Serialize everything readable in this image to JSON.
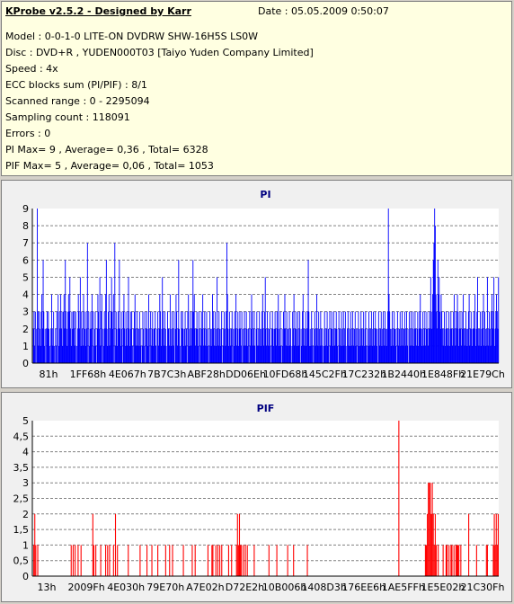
{
  "header": {
    "title": "KProbe v2.5.2 - Designed by Karr",
    "date": "Date : 05.05.2009 0:50:07"
  },
  "info_lines": [
    "Model : 0-0-1-0 LITE-ON DVDRW SHW-16H5S  LS0W",
    "Disc : DVD+R , YUDEN000T03 [Taiyo Yuden Company Limited]",
    "Speed : 4x",
    "ECC blocks sum (PI/PIF) : 8/1",
    "Scanned range : 0 - 2295094",
    "Sampling count : 118091",
    "Errors : 0",
    "PI Max= 9 , Average= 0,36 , Total= 6328",
    "PIF Max= 5 , Average= 0,06 , Total= 1053"
  ],
  "colors": {
    "pi": "#0000ff",
    "pif": "#ff0000",
    "title": "#000080",
    "grid": "#808080",
    "panel": "#f0f0f0",
    "info_bg": "#ffffe1"
  },
  "chart_data": [
    {
      "type": "bar",
      "title": "PI",
      "ylim": [
        0,
        9
      ],
      "yticks": [
        "0",
        "1",
        "2",
        "3",
        "4",
        "5",
        "6",
        "7",
        "8",
        "9"
      ],
      "xticks": [
        "81h",
        "1FF68h",
        "4E067h",
        "7B7C3h",
        "ABF28h",
        "DD06Eh",
        "10FD68h",
        "145C2Fh",
        "17C232h",
        "1B2440h",
        "1E848Fh",
        "21E79Ch"
      ],
      "grid": true,
      "series": [
        {
          "values": [
            0,
            2,
            3,
            1,
            3,
            0,
            2,
            9,
            3,
            1,
            3,
            2,
            1,
            3,
            4,
            2,
            6,
            3,
            1,
            2,
            0,
            2,
            3,
            2,
            3,
            2,
            1,
            0,
            2,
            4,
            2,
            1,
            3,
            1,
            0,
            2,
            1,
            3,
            0,
            4,
            1,
            3,
            2,
            4,
            2,
            3,
            1,
            3,
            4,
            2,
            6,
            3,
            2,
            1,
            3,
            4,
            3,
            5,
            2,
            1,
            3,
            2,
            3,
            2,
            3,
            1,
            3,
            0,
            1,
            2,
            4,
            3,
            2,
            5,
            1,
            3,
            2,
            1,
            4,
            3,
            2,
            1,
            3,
            2,
            7,
            0,
            3,
            1,
            2,
            3,
            2,
            4,
            0,
            3,
            1,
            2,
            3,
            1,
            0,
            2,
            4,
            3,
            2,
            5,
            1,
            3,
            4,
            0,
            2,
            1,
            3,
            2,
            4,
            6,
            2,
            1,
            3,
            4,
            1,
            2,
            3,
            5,
            3,
            2,
            4,
            0,
            7,
            1,
            3,
            2,
            1,
            3,
            2,
            6,
            2,
            1,
            3,
            2,
            0,
            3,
            4,
            2,
            1,
            3,
            2,
            1,
            3,
            5,
            2,
            1,
            3,
            2,
            3,
            1,
            0,
            2,
            3,
            4,
            2,
            1,
            3,
            2,
            1,
            2,
            3,
            1,
            2,
            0,
            1,
            3,
            2,
            1,
            3,
            0,
            2,
            3,
            2,
            1,
            4,
            2,
            0,
            3,
            1,
            2,
            3,
            1,
            2,
            2,
            3,
            1,
            0,
            2,
            3,
            1,
            2,
            4,
            3,
            1,
            2,
            5,
            3,
            2,
            1,
            3,
            2,
            1,
            0,
            3,
            2,
            2,
            1,
            4,
            2,
            1,
            3,
            2,
            1,
            3,
            0,
            2,
            4,
            3,
            1,
            2,
            6,
            2,
            1,
            0,
            3,
            2,
            3,
            2,
            1,
            2,
            3,
            1,
            2,
            0,
            3,
            4,
            1,
            2,
            3,
            1,
            2,
            3,
            6,
            3,
            4,
            2,
            1,
            2,
            3,
            2,
            1,
            3,
            0,
            2,
            1,
            3,
            2,
            4,
            1,
            2,
            3,
            1,
            2,
            3,
            1,
            2,
            0,
            1,
            3,
            2,
            1,
            2,
            4,
            3,
            2,
            1,
            3,
            1,
            2,
            5,
            2,
            1,
            3,
            2,
            1,
            2,
            3,
            0,
            1,
            2,
            3,
            2,
            1,
            3,
            7,
            4,
            2,
            1,
            3,
            2,
            1,
            2,
            3,
            0,
            2,
            1,
            3,
            2,
            4,
            1,
            2,
            3,
            1,
            2,
            3,
            2,
            1,
            3,
            0,
            2,
            1,
            3,
            2,
            1,
            3,
            2,
            1,
            2,
            0,
            3,
            1,
            2,
            4,
            3,
            1,
            2,
            3,
            1,
            0,
            2,
            3,
            1,
            2,
            1,
            3,
            2,
            1,
            2,
            3,
            4,
            2,
            1,
            3,
            5,
            2,
            1,
            3,
            2,
            1,
            2,
            3,
            1,
            0,
            2,
            3,
            2,
            1,
            2,
            3,
            2,
            1,
            3,
            2,
            4,
            1,
            2,
            3,
            1,
            0,
            2,
            1,
            3,
            2,
            4,
            2,
            1,
            3,
            2,
            1,
            2,
            3,
            1,
            2,
            0,
            1,
            3,
            2,
            4,
            1,
            2,
            3,
            2,
            1,
            3,
            1,
            2,
            3,
            0,
            2,
            1,
            3,
            4,
            2,
            1,
            2,
            3,
            1,
            2,
            3,
            6,
            3,
            1,
            2,
            1,
            3,
            2,
            1,
            0,
            2,
            3,
            1,
            2,
            4,
            2,
            1,
            3,
            2,
            1,
            3,
            2,
            1,
            2,
            0,
            1,
            3,
            2,
            1,
            2,
            3,
            1,
            2,
            0,
            3,
            1,
            2,
            3,
            2,
            1,
            3,
            2,
            1,
            2,
            3,
            2,
            1,
            0,
            3,
            2,
            1,
            2,
            3,
            1,
            2,
            3,
            1,
            2,
            3,
            1,
            0,
            2,
            3,
            1,
            2,
            1,
            3,
            2,
            1,
            3,
            2,
            1,
            2,
            3,
            1,
            2,
            0,
            2,
            3,
            1,
            2,
            1,
            3,
            2,
            1,
            2,
            3,
            1,
            2,
            3,
            1,
            0,
            2,
            1,
            3,
            2,
            1,
            2,
            3,
            1,
            2,
            3,
            1,
            2,
            3,
            2,
            1,
            2,
            0,
            3,
            2,
            1,
            2,
            3,
            1,
            2,
            3,
            2,
            1,
            3,
            2,
            1,
            2,
            3,
            9,
            4,
            3,
            2,
            1,
            2,
            3,
            1,
            2,
            3,
            2,
            1,
            2,
            0,
            3,
            2,
            1,
            2,
            3,
            1,
            2,
            3,
            1,
            2,
            2,
            3,
            1,
            2,
            3,
            1,
            2,
            0,
            3,
            1,
            2,
            3,
            1,
            2,
            3,
            1,
            2,
            3,
            2,
            1,
            2,
            3,
            1,
            2,
            3,
            4,
            2,
            1,
            2,
            3,
            1,
            2,
            3,
            1,
            2,
            3,
            2,
            1,
            2,
            3,
            2,
            5,
            3,
            2,
            4,
            6,
            7,
            9,
            8,
            4,
            3,
            2,
            6,
            4,
            5,
            3,
            2,
            4,
            3,
            2,
            1,
            2,
            3,
            1,
            2,
            3,
            2,
            1,
            2,
            3,
            1,
            2,
            3,
            2,
            1,
            2,
            3,
            4,
            2,
            1,
            3,
            2,
            4,
            3,
            1,
            2,
            3,
            2,
            1,
            3,
            2,
            4,
            2,
            1,
            2,
            3,
            2,
            1,
            2,
            3,
            4,
            1,
            2,
            3,
            2,
            1,
            2,
            3,
            2,
            4,
            1,
            2,
            3,
            5,
            2,
            1,
            2,
            3,
            1,
            2,
            3,
            2,
            4,
            1,
            3,
            2,
            1,
            2,
            5,
            1,
            2,
            3,
            2,
            1,
            3,
            4,
            2,
            3,
            5,
            1,
            2,
            3,
            4,
            3,
            2,
            5
          ]
        }
      ]
    },
    {
      "type": "bar",
      "title": "PIF",
      "ylim": [
        0,
        5
      ],
      "yticks": [
        "0",
        "0,5",
        "1",
        "1,5",
        "2",
        "2,5",
        "3",
        "3,5",
        "4",
        "4,5",
        "5"
      ],
      "xticks": [
        "13h",
        "2009Fh",
        "4E030h",
        "79E70h",
        "A7E02h",
        "D72E2h",
        "10B006h",
        "1408D3h",
        "176EE6h",
        "1AE5FFh",
        "1E5E02h",
        "21C30Fh"
      ],
      "grid": true,
      "series": [
        {
          "values": [
            0,
            1,
            2,
            1,
            0,
            1,
            0,
            0,
            0,
            0,
            0,
            0,
            0,
            0,
            0,
            0,
            0,
            0,
            0,
            0,
            0,
            0,
            0,
            0,
            0,
            0,
            0,
            0,
            0,
            0,
            0,
            0,
            0,
            0,
            0,
            0,
            0,
            0,
            0,
            1,
            0,
            1,
            0,
            1,
            0,
            0,
            1,
            0,
            0,
            1,
            0,
            0,
            0,
            0,
            0,
            0,
            0,
            0,
            0,
            0,
            0,
            2,
            1,
            0,
            1,
            0,
            0,
            0,
            0,
            1,
            0,
            0,
            0,
            0,
            1,
            0,
            1,
            0,
            1,
            0,
            0,
            0,
            1,
            0,
            2,
            0,
            1,
            0,
            0,
            0,
            0,
            0,
            0,
            0,
            0,
            0,
            0,
            1,
            0,
            0,
            0,
            0,
            0,
            0,
            0,
            0,
            0,
            0,
            0,
            1,
            0,
            0,
            0,
            0,
            0,
            0,
            1,
            0,
            0,
            0,
            0,
            1,
            0,
            0,
            0,
            0,
            0,
            1,
            0,
            0,
            0,
            0,
            0,
            0,
            0,
            1,
            0,
            0,
            0,
            1,
            0,
            0,
            1,
            0,
            0,
            0,
            0,
            0,
            0,
            0,
            0,
            0,
            0,
            1,
            0,
            0,
            0,
            0,
            0,
            0,
            0,
            0,
            1,
            0,
            0,
            1,
            0,
            0,
            0,
            0,
            0,
            0,
            0,
            0,
            0,
            0,
            0,
            0,
            1,
            0,
            0,
            0,
            1,
            1,
            0,
            0,
            1,
            0,
            1,
            0,
            1,
            0,
            1,
            0,
            0,
            0,
            0,
            0,
            0,
            1,
            0,
            0,
            1,
            0,
            0,
            0,
            0,
            1,
            2,
            1,
            2,
            1,
            1,
            0,
            1,
            0,
            1,
            0,
            1,
            0,
            0,
            0,
            0,
            0,
            0,
            1,
            0,
            0,
            0,
            0,
            0,
            0,
            0,
            0,
            0,
            0,
            0,
            0,
            0,
            0,
            1,
            0,
            0,
            0,
            0,
            0,
            0,
            0,
            1,
            0,
            0,
            0,
            0,
            0,
            0,
            0,
            0,
            0,
            0,
            1,
            0,
            0,
            0,
            0,
            0,
            1,
            0,
            0,
            0,
            0,
            0,
            0,
            0,
            0,
            0,
            0,
            0,
            0,
            0,
            1,
            0,
            0,
            0,
            0,
            0,
            0,
            0,
            0,
            0,
            0,
            0,
            0,
            0,
            0,
            0,
            0,
            0,
            0,
            0,
            0,
            0,
            0,
            0,
            0,
            0,
            0,
            0,
            0,
            0,
            0,
            0,
            0,
            0,
            0,
            0,
            0,
            0,
            0,
            0,
            0,
            0,
            0,
            0,
            0,
            0,
            0,
            0,
            0,
            0,
            0,
            0,
            0,
            0,
            0,
            0,
            0,
            0,
            0,
            0,
            0,
            0,
            0,
            0,
            0,
            0,
            0,
            0,
            0,
            0,
            0,
            0,
            0,
            0,
            0,
            0,
            0,
            0,
            0,
            0,
            0,
            0,
            0,
            0,
            0,
            0,
            0,
            0,
            0,
            0,
            0,
            0,
            0,
            5,
            0,
            0,
            0,
            0,
            0,
            0,
            0,
            0,
            0,
            0,
            0,
            0,
            0,
            0,
            0,
            0,
            0,
            0,
            0,
            0,
            0,
            0,
            0,
            0,
            0,
            0,
            1,
            1,
            2,
            3,
            3,
            3,
            2,
            3,
            2,
            1,
            2,
            1,
            0,
            1,
            0,
            0,
            0,
            0,
            1,
            0,
            0,
            1,
            1,
            0,
            1,
            0,
            1,
            1,
            0,
            1,
            0,
            1,
            1,
            1,
            1,
            0,
            1,
            0,
            0,
            0,
            0,
            0,
            0,
            0,
            2,
            0,
            0,
            0,
            0,
            0,
            0,
            0,
            1,
            0,
            0,
            0,
            0,
            0,
            0,
            0,
            0,
            0,
            1,
            1,
            0,
            0,
            0,
            0,
            0,
            1,
            2,
            1,
            2,
            1,
            2
          ]
        }
      ]
    }
  ]
}
